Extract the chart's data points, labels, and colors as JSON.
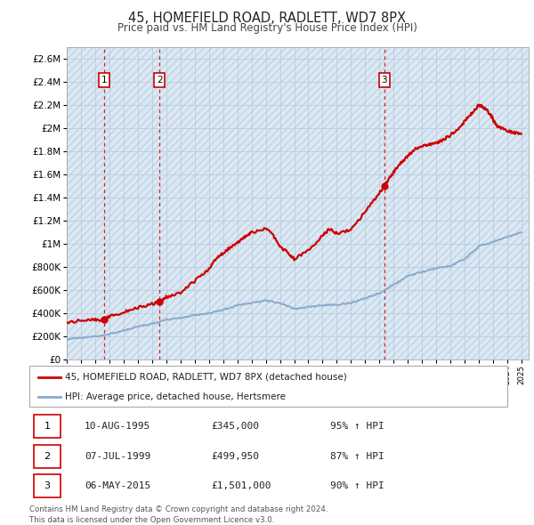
{
  "title": "45, HOMEFIELD ROAD, RADLETT, WD7 8PX",
  "subtitle": "Price paid vs. HM Land Registry's House Price Index (HPI)",
  "ytick_values": [
    0,
    200000,
    400000,
    600000,
    800000,
    1000000,
    1200000,
    1400000,
    1600000,
    1800000,
    2000000,
    2200000,
    2400000,
    2600000
  ],
  "ymax": 2700000,
  "xmin": 1993.0,
  "xmax": 2025.5,
  "transactions": [
    {
      "label": "1",
      "year": 1995.62,
      "price": 345000,
      "date": "10-AUG-1995",
      "price_str": "£345,000",
      "pct": "95%",
      "dir": "↑"
    },
    {
      "label": "2",
      "year": 1999.52,
      "price": 499950,
      "date": "07-JUL-1999",
      "price_str": "£499,950",
      "pct": "87%",
      "dir": "↑"
    },
    {
      "label": "3",
      "year": 2015.35,
      "price": 1501000,
      "date": "06-MAY-2015",
      "price_str": "£1,501,000",
      "pct": "90%",
      "dir": "↑"
    }
  ],
  "legend_label_red": "45, HOMEFIELD ROAD, RADLETT, WD7 8PX (detached house)",
  "legend_label_blue": "HPI: Average price, detached house, Hertsmere",
  "footer": "Contains HM Land Registry data © Crown copyright and database right 2024.\nThis data is licensed under the Open Government Licence v3.0.",
  "red_color": "#cc0000",
  "blue_color": "#88aacc",
  "bg_hatch_face": "#dce8f2",
  "bg_hatch_edge": "#c0d4e8",
  "grid_color": "#b8cedd",
  "hpi_anchors_x": [
    1993,
    1994,
    1995,
    1996,
    1997,
    1998,
    1999,
    2000,
    2001,
    2002,
    2003,
    2004,
    2005,
    2006,
    2007,
    2008,
    2009,
    2010,
    2011,
    2012,
    2013,
    2014,
    2015,
    2016,
    2017,
    2018,
    2019,
    2020,
    2021,
    2022,
    2023,
    2024,
    2025
  ],
  "hpi_anchors_y": [
    175000,
    190000,
    200000,
    220000,
    250000,
    285000,
    310000,
    345000,
    360000,
    385000,
    400000,
    430000,
    470000,
    490000,
    510000,
    490000,
    440000,
    455000,
    470000,
    475000,
    490000,
    530000,
    575000,
    650000,
    720000,
    760000,
    790000,
    810000,
    870000,
    980000,
    1020000,
    1060000,
    1100000
  ],
  "price_anchors_x": [
    1993,
    1994,
    1995,
    1995.62,
    1996,
    1997,
    1998,
    1999,
    1999.52,
    2000,
    2001,
    2002,
    2003,
    2003.5,
    2004,
    2004.5,
    2005,
    2005.5,
    2006,
    2007,
    2007.5,
    2008,
    2008.5,
    2009,
    2010,
    2011,
    2011.5,
    2012,
    2013,
    2014,
    2015,
    2015.35,
    2016,
    2016.5,
    2017,
    2017.5,
    2018,
    2018.5,
    2019,
    2019.5,
    2020,
    2020.5,
    2021,
    2021.5,
    2022,
    2022.3,
    2022.6,
    2022.9,
    2023,
    2023.3,
    2023.6,
    2024,
    2024.5,
    2025
  ],
  "price_anchors_y": [
    320000,
    340000,
    345000,
    345000,
    370000,
    410000,
    450000,
    480000,
    499950,
    540000,
    580000,
    680000,
    780000,
    870000,
    920000,
    970000,
    1010000,
    1060000,
    1100000,
    1130000,
    1080000,
    980000,
    930000,
    870000,
    940000,
    1070000,
    1130000,
    1090000,
    1120000,
    1280000,
    1440000,
    1501000,
    1620000,
    1700000,
    1760000,
    1820000,
    1840000,
    1860000,
    1870000,
    1900000,
    1940000,
    1990000,
    2060000,
    2130000,
    2200000,
    2180000,
    2150000,
    2100000,
    2070000,
    2020000,
    2000000,
    1980000,
    1960000,
    1950000
  ]
}
